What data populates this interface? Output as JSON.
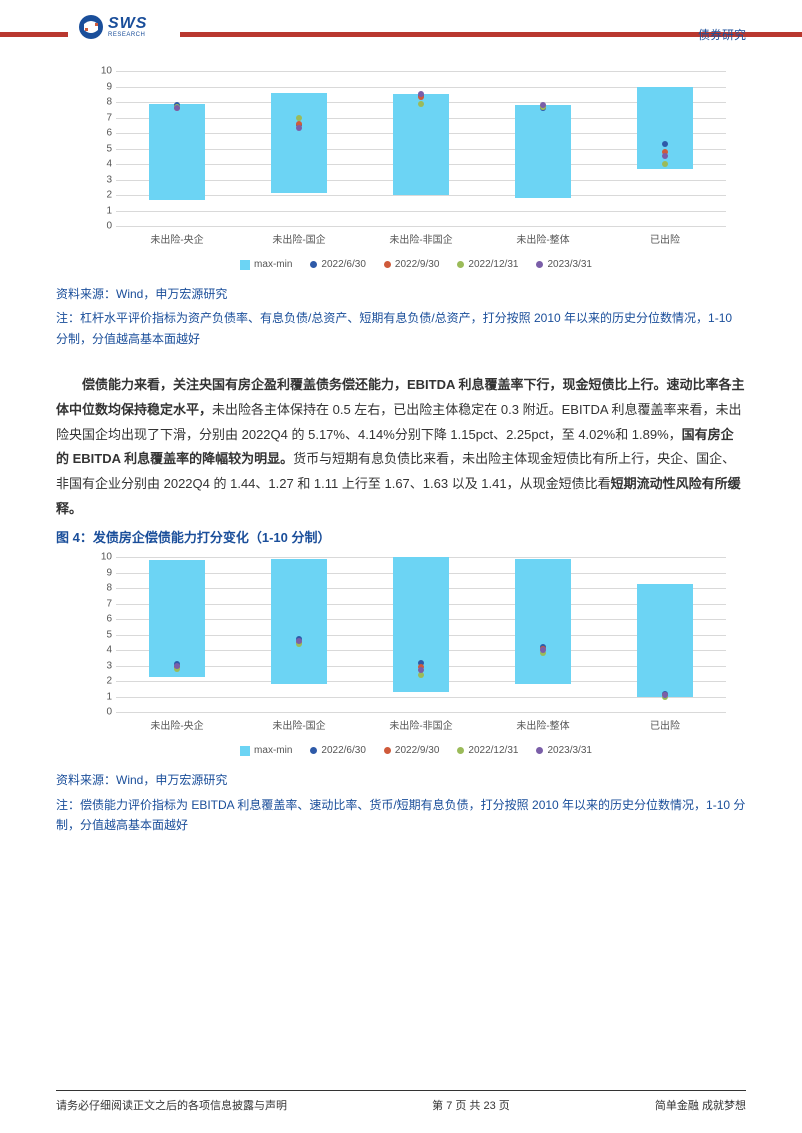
{
  "header": {
    "brand_main": "SWS",
    "brand_sub": "RESEARCH",
    "category": "债券研究",
    "red_color": "#b9382f",
    "brand_color": "#1a4e9a"
  },
  "chart1": {
    "type": "bar-with-dots",
    "ylim": [
      0,
      10
    ],
    "ytick_step": 1,
    "bar_color": "#6cd4f4",
    "grid_color": "#d9d9d9",
    "tick_color": "#555555",
    "categories": [
      "未出险-央企",
      "未出险-国企",
      "未出险-非国企",
      "未出险-整体",
      "已出险"
    ],
    "bar_ranges": [
      {
        "min": 1.7,
        "max": 7.9
      },
      {
        "min": 2.1,
        "max": 8.6
      },
      {
        "min": 2.0,
        "max": 8.5
      },
      {
        "min": 1.8,
        "max": 7.8
      },
      {
        "min": 3.7,
        "max": 9.0
      }
    ],
    "series": [
      {
        "label": "max-min",
        "type": "bar",
        "color": "#6cd4f4"
      },
      {
        "label": "2022/6/30",
        "type": "dot",
        "color": "#2e5aa8",
        "values": [
          7.8,
          6.5,
          8.4,
          7.6,
          5.3
        ]
      },
      {
        "label": "2022/9/30",
        "type": "dot",
        "color": "#cf5a3a",
        "values": [
          7.6,
          6.6,
          8.3,
          7.7,
          4.8
        ]
      },
      {
        "label": "2022/12/31",
        "type": "dot",
        "color": "#9bbb59",
        "values": [
          7.7,
          7.0,
          7.9,
          7.7,
          4.0
        ]
      },
      {
        "label": "2023/3/31",
        "type": "dot",
        "color": "#7a5ea8",
        "values": [
          7.6,
          6.3,
          8.5,
          7.8,
          4.5
        ]
      }
    ]
  },
  "source1": {
    "line1": "资料来源：Wind，申万宏源研究",
    "line2": "注：杠杆水平评价指标为资产负债率、有息负债/总资产、短期有息负债/总资产，打分按照 2010 年以来的历史分位数情况，1-10 分制，分值越高基本面越好"
  },
  "body": {
    "text_before_bold1": "偿债能力来看，关注央国有房企盈利覆盖债务偿还能力，EBITDA 利息覆盖率下行，现金短债比上行。速动比率各主体中位数均保持稳定水平，",
    "text_plain1": "未出险各主体保持在 0.5 左右，已出险主体稳定在 0.3 附近。EBITDA 利息覆盖率来看，未出险央国企均出现了下滑，分别由 2022Q4 的 5.17%、4.14%分别下降 1.15pct、2.25pct，至 4.02%和 1.89%，",
    "text_bold2": "国有房企的 EBITDA 利息覆盖率的降幅较为明显。",
    "text_plain2": "货币与短期有息负债比来看，未出险主体现金短债比有所上行，央企、国企、非国有企业分别由 2022Q4 的 1.44、1.27 和 1.11 上行至 1.67、1.63 以及 1.41，从现金短债比看",
    "text_bold3": "短期流动性风险有所缓释。"
  },
  "fig4_title": "图 4：发债房企偿债能力打分变化（1-10 分制）",
  "chart2": {
    "type": "bar-with-dots",
    "ylim": [
      0,
      10
    ],
    "ytick_step": 1,
    "bar_color": "#6cd4f4",
    "grid_color": "#d9d9d9",
    "tick_color": "#555555",
    "categories": [
      "未出险-央企",
      "未出险-国企",
      "未出险-非国企",
      "未出险-整体",
      "已出险"
    ],
    "bar_ranges": [
      {
        "min": 2.3,
        "max": 9.8
      },
      {
        "min": 1.8,
        "max": 9.9
      },
      {
        "min": 1.3,
        "max": 10.0
      },
      {
        "min": 1.8,
        "max": 9.9
      },
      {
        "min": 1.0,
        "max": 8.3
      }
    ],
    "series": [
      {
        "label": "max-min",
        "type": "bar",
        "color": "#6cd4f4"
      },
      {
        "label": "2022/6/30",
        "type": "dot",
        "color": "#2e5aa8",
        "values": [
          3.1,
          4.7,
          3.2,
          4.2,
          1.2
        ]
      },
      {
        "label": "2022/9/30",
        "type": "dot",
        "color": "#cf5a3a",
        "values": [
          2.9,
          4.5,
          2.9,
          4.1,
          1.1
        ]
      },
      {
        "label": "2022/12/31",
        "type": "dot",
        "color": "#9bbb59",
        "values": [
          2.8,
          4.4,
          2.4,
          3.8,
          1.0
        ]
      },
      {
        "label": "2023/3/31",
        "type": "dot",
        "color": "#7a5ea8",
        "values": [
          3.0,
          4.6,
          2.7,
          4.0,
          1.1
        ]
      }
    ]
  },
  "source2": {
    "line1": "资料来源：Wind，申万宏源研究",
    "line2": "注：偿债能力评价指标为 EBITDA 利息覆盖率、速动比率、货币/短期有息负债，打分按照 2010 年以来的历史分位数情况，1-10 分制，分值越高基本面越好"
  },
  "footer": {
    "left": "请务必仔细阅读正文之后的各项信息披露与声明",
    "center": "第 7 页 共 23 页",
    "right": "简单金融 成就梦想"
  }
}
